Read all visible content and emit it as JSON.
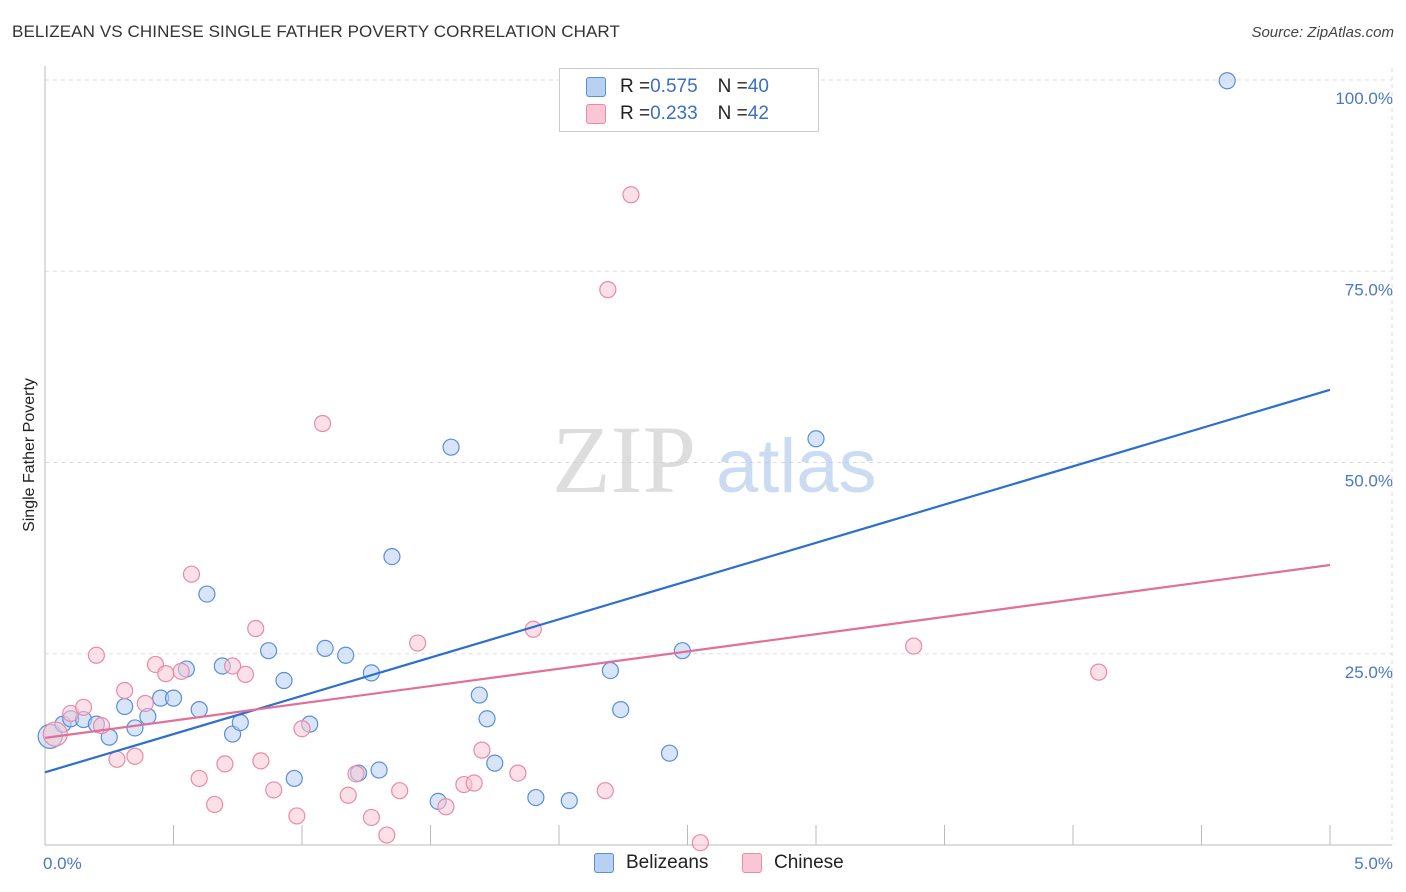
{
  "title": "BELIZEAN VS CHINESE SINGLE FATHER POVERTY CORRELATION CHART",
  "source": "Source: ZipAtlas.com",
  "watermark": {
    "zip": "ZIP",
    "atlas": "atlas"
  },
  "colors": {
    "blue_fill": "#b8d0f2",
    "blue_stroke": "#5a8fd8",
    "blue_line": "#2e6fce",
    "pink_fill": "#f8c6d4",
    "pink_stroke": "#e98aa8",
    "pink_line": "#e0709a",
    "grid": "#dddddd",
    "tick_text": "#4a78c4"
  },
  "legend": {
    "rows": [
      {
        "r_label": "R = ",
        "r_value": "0.575",
        "n_label": "N = ",
        "n_value": "40"
      },
      {
        "r_label": "R = ",
        "r_value": "0.233",
        "n_label": "N = ",
        "n_value": "42"
      }
    ]
  },
  "bottom_legend": [
    "Belizeans",
    "Chinese"
  ],
  "chart_data": {
    "type": "scatter",
    "title": "BELIZEAN VS CHINESE SINGLE FATHER POVERTY CORRELATION CHART",
    "xlabel": "",
    "ylabel": "Single Father Poverty",
    "xlim": [
      0,
      5
    ],
    "ylim": [
      0,
      100
    ],
    "x_tick_labels": [
      "0.0%",
      "5.0%"
    ],
    "y_ticks": [
      25,
      50,
      75,
      100
    ],
    "y_tick_labels": [
      "25.0%",
      "50.0%",
      "75.0%",
      "100.0%"
    ],
    "grid": true,
    "series": [
      {
        "name": "Belizeans",
        "r": 0.575,
        "n": 40,
        "trend": {
          "x": [
            0,
            5
          ],
          "y": [
            9.5,
            59.5
          ]
        },
        "points": [
          [
            0.02,
            14.2
          ],
          [
            0.07,
            15.8
          ],
          [
            0.1,
            16.5
          ],
          [
            0.15,
            16.4
          ],
          [
            0.2,
            15.8
          ],
          [
            0.25,
            14.1
          ],
          [
            0.31,
            18.1
          ],
          [
            0.35,
            15.3
          ],
          [
            0.4,
            16.8
          ],
          [
            0.45,
            19.2
          ],
          [
            0.5,
            19.2
          ],
          [
            0.55,
            23.0
          ],
          [
            0.6,
            17.7
          ],
          [
            0.63,
            32.8
          ],
          [
            0.69,
            23.4
          ],
          [
            0.73,
            14.5
          ],
          [
            0.76,
            16.0
          ],
          [
            0.87,
            25.4
          ],
          [
            0.93,
            21.5
          ],
          [
            0.97,
            8.7
          ],
          [
            1.03,
            15.8
          ],
          [
            1.09,
            25.7
          ],
          [
            1.17,
            24.8
          ],
          [
            1.22,
            9.4
          ],
          [
            1.27,
            22.5
          ],
          [
            1.3,
            9.8
          ],
          [
            1.35,
            37.7
          ],
          [
            1.53,
            5.7
          ],
          [
            1.58,
            52.0
          ],
          [
            1.69,
            19.6
          ],
          [
            1.72,
            16.5
          ],
          [
            1.75,
            10.7
          ],
          [
            1.91,
            6.2
          ],
          [
            2.04,
            5.8
          ],
          [
            2.2,
            22.8
          ],
          [
            2.24,
            17.7
          ],
          [
            2.43,
            12.0
          ],
          [
            2.48,
            25.4
          ],
          [
            3.0,
            53.1
          ],
          [
            4.6,
            99.9
          ]
        ]
      },
      {
        "name": "Chinese",
        "r": 0.233,
        "n": 42,
        "trend": {
          "x": [
            0,
            5
          ],
          "y": [
            14.0,
            36.6
          ]
        },
        "points": [
          [
            0.04,
            14.5
          ],
          [
            0.1,
            17.2
          ],
          [
            0.15,
            18.0
          ],
          [
            0.2,
            24.8
          ],
          [
            0.22,
            15.6
          ],
          [
            0.28,
            11.2
          ],
          [
            0.31,
            20.2
          ],
          [
            0.35,
            11.6
          ],
          [
            0.39,
            18.5
          ],
          [
            0.43,
            23.6
          ],
          [
            0.47,
            22.4
          ],
          [
            0.53,
            22.7
          ],
          [
            0.57,
            35.4
          ],
          [
            0.6,
            8.7
          ],
          [
            0.66,
            5.3
          ],
          [
            0.7,
            10.6
          ],
          [
            0.73,
            23.4
          ],
          [
            0.78,
            22.3
          ],
          [
            0.82,
            28.3
          ],
          [
            0.84,
            11.0
          ],
          [
            0.89,
            7.2
          ],
          [
            0.98,
            3.8
          ],
          [
            1.0,
            15.2
          ],
          [
            1.08,
            55.1
          ],
          [
            1.18,
            6.5
          ],
          [
            1.21,
            9.3
          ],
          [
            1.27,
            3.6
          ],
          [
            1.33,
            1.3
          ],
          [
            1.38,
            7.1
          ],
          [
            1.45,
            26.4
          ],
          [
            1.56,
            5.0
          ],
          [
            1.63,
            7.9
          ],
          [
            1.67,
            8.1
          ],
          [
            1.7,
            12.4
          ],
          [
            1.84,
            9.4
          ],
          [
            1.9,
            28.2
          ],
          [
            2.18,
            7.1
          ],
          [
            2.19,
            72.6
          ],
          [
            2.28,
            85.0
          ],
          [
            2.55,
            0.3
          ],
          [
            3.38,
            26.0
          ],
          [
            4.1,
            22.6
          ]
        ]
      }
    ]
  }
}
